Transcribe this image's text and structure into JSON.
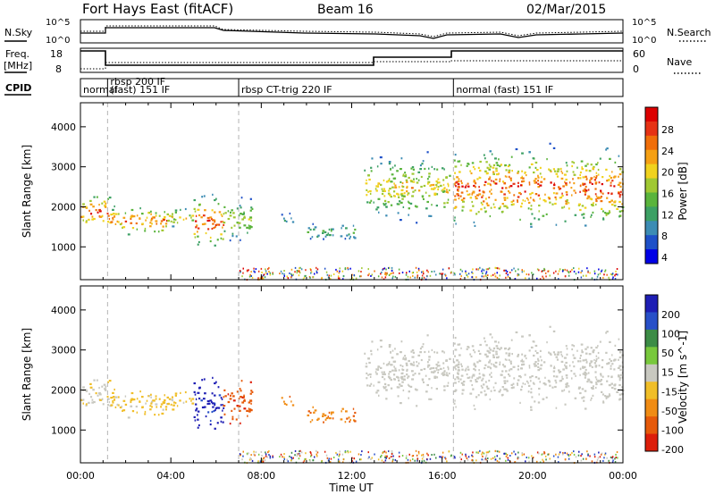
{
  "header": {
    "station": "Fort Hays East (fitACF)",
    "beam": "Beam 16",
    "date": "02/Mar/2015"
  },
  "top_panels": {
    "nsky_label": "N.Sky",
    "nsearch_label": "N.Search",
    "nsky_ticks": [
      "10^5",
      "10^0"
    ],
    "nsearch_ticks": [
      "10^5",
      "10^0"
    ],
    "freq_label_1": "Freq.",
    "freq_label_2": "[MHz]",
    "freq_ticks": [
      "18",
      "8"
    ],
    "nave_label": "Nave",
    "nave_ticks": [
      "60",
      "0"
    ],
    "cpid_label": "CPID"
  },
  "cpid_segments": [
    {
      "label": "normal",
      "start_h": 0.0,
      "end_h": 1.2
    },
    {
      "label": "rbsp 200 IF",
      "start_h": 1.2,
      "end_h": 7.0
    },
    {
      "label": "(fast) 151 IF",
      "start_h": 1.2,
      "end_h": 7.0
    },
    {
      "label": "rbsp CT-trig 220 IF",
      "start_h": 7.0,
      "end_h": 16.5
    },
    {
      "label": "normal (fast) 151 IF",
      "start_h": 16.5,
      "end_h": 24.0
    }
  ],
  "x_axis": {
    "label": "Time UT",
    "ticks": [
      "00:00",
      "04:00",
      "08:00",
      "12:00",
      "16:00",
      "20:00",
      "00:00"
    ],
    "range_h": [
      0,
      24
    ]
  },
  "power_panel": {
    "ylabel": "Slant Range [km]",
    "yticks": [
      "1000",
      "2000",
      "3000",
      "4000"
    ],
    "yrange_km": [
      180,
      4600
    ],
    "colorbar_label": "Power [dB]",
    "colorbar_ticks": [
      "28",
      "24",
      "20",
      "16",
      "12",
      "8",
      "4"
    ],
    "colors": [
      "#0000e6",
      "#1e50c8",
      "#3c8cb4",
      "#3ca064",
      "#5ab43c",
      "#a0c832",
      "#f0d21e",
      "#f5a014",
      "#f06e0a",
      "#e63214",
      "#dc0000"
    ]
  },
  "velocity_panel": {
    "ylabel": "Slant Range [km]",
    "yticks": [
      "1000",
      "2000",
      "3000",
      "4000"
    ],
    "yrange_km": [
      180,
      4600
    ],
    "colorbar_label": "Velocity [m s^-1]",
    "colorbar_ticks": [
      "200",
      "100",
      "50",
      "15",
      "-15",
      "-50",
      "-100",
      "-200"
    ],
    "colors": [
      "#1e1eb4",
      "#2850c8",
      "#3c8c46",
      "#78c83c",
      "#c8c8c0",
      "#f0be28",
      "#f08c14",
      "#e65a0a",
      "#dc1e0a"
    ]
  },
  "chart_data": {
    "type": "heatmap",
    "title": "Fort Hays East (fitACF)  Beam 16  02/Mar/2015",
    "xlabel": "Time UT",
    "ylabel": "Slant Range [km]",
    "x_unit": "hours UT",
    "xlim": [
      0,
      24
    ],
    "ylim": [
      180,
      4600
    ],
    "echo_regions": [
      {
        "start_h": 0.0,
        "end_h": 1.3,
        "range_min_km": 1300,
        "range_max_km": 2500,
        "peak_power_db": 28,
        "velocity_class": "-15..15 with -15..-50"
      },
      {
        "start_h": 1.3,
        "end_h": 3.8,
        "range_min_km": 1150,
        "range_max_km": 2200,
        "peak_power_db": 24,
        "velocity_class": "-15..-50"
      },
      {
        "start_h": 3.8,
        "end_h": 5.0,
        "range_min_km": 1400,
        "range_max_km": 2100,
        "peak_power_db": 20,
        "velocity_class": "-15..-50"
      },
      {
        "start_h": 5.0,
        "end_h": 6.3,
        "range_min_km": 800,
        "range_max_km": 2500,
        "peak_power_db": 28,
        "velocity_class": "100..200"
      },
      {
        "start_h": 6.3,
        "end_h": 7.6,
        "range_min_km": 1000,
        "range_max_km": 2400,
        "peak_power_db": 16,
        "velocity_class": "-100..-200"
      },
      {
        "start_h": 8.8,
        "end_h": 9.4,
        "range_min_km": 1500,
        "range_max_km": 1900,
        "peak_power_db": 8,
        "velocity_class": "-50..-100"
      },
      {
        "start_h": 10.0,
        "end_h": 12.2,
        "range_min_km": 1100,
        "range_max_km": 1700,
        "peak_power_db": 12,
        "velocity_class": "-50..-100"
      },
      {
        "start_h": 12.5,
        "end_h": 16.3,
        "range_min_km": 1500,
        "range_max_km": 3500,
        "peak_power_db": 20,
        "velocity_class": "-15..15"
      },
      {
        "start_h": 16.5,
        "end_h": 24.0,
        "range_min_km": 1300,
        "range_max_km": 3700,
        "peak_power_db": 28,
        "velocity_class": "-15..15"
      }
    ]
  }
}
